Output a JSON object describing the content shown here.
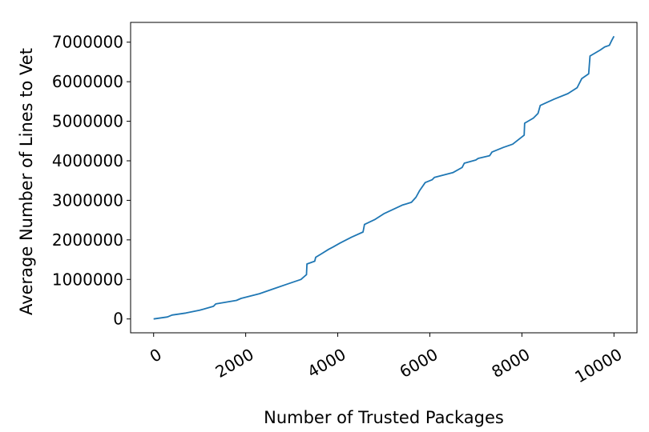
{
  "chart_data": {
    "type": "line",
    "title": "",
    "xlabel": "Number of Trusted Packages",
    "ylabel": "Average Number of Lines to Vet",
    "xlim": [
      -500,
      10500
    ],
    "ylim": [
      -350000,
      7500000
    ],
    "xticks": [
      0,
      2000,
      4000,
      6000,
      8000,
      10000
    ],
    "xtick_labels": [
      "0",
      "2000",
      "4000",
      "6000",
      "8000",
      "10000"
    ],
    "yticks": [
      0,
      1000000,
      2000000,
      3000000,
      4000000,
      5000000,
      6000000,
      7000000
    ],
    "ytick_labels": [
      "0",
      "1000000",
      "2000000",
      "3000000",
      "4000000",
      "5000000",
      "6000000",
      "7000000"
    ],
    "grid": false,
    "legend": "none",
    "series": [
      {
        "color": "#1f77b4",
        "x": [
          0,
          300,
          400,
          700,
          1000,
          1300,
          1350,
          1800,
          1900,
          2300,
          2600,
          2900,
          3200,
          3320,
          3330,
          3500,
          3520,
          3650,
          3800,
          3900,
          4050,
          4300,
          4550,
          4580,
          4800,
          5000,
          5400,
          5600,
          5700,
          5780,
          5900,
          6050,
          6100,
          6500,
          6700,
          6750,
          7000,
          7050,
          7300,
          7350,
          7600,
          7800,
          8050,
          8060,
          8250,
          8350,
          8400,
          8700,
          9000,
          9200,
          9300,
          9450,
          9480,
          9700,
          9800,
          9900,
          9950,
          10000
        ],
        "values": [
          0,
          50000,
          100000,
          150000,
          220000,
          320000,
          380000,
          470000,
          520000,
          640000,
          760000,
          880000,
          1000000,
          1120000,
          1390000,
          1460000,
          1560000,
          1650000,
          1760000,
          1820000,
          1920000,
          2070000,
          2200000,
          2390000,
          2510000,
          2660000,
          2880000,
          2950000,
          3080000,
          3250000,
          3450000,
          3520000,
          3580000,
          3700000,
          3830000,
          3940000,
          4020000,
          4060000,
          4130000,
          4220000,
          4340000,
          4420000,
          4650000,
          4950000,
          5080000,
          5200000,
          5400000,
          5560000,
          5700000,
          5850000,
          6080000,
          6200000,
          6650000,
          6800000,
          6880000,
          6920000,
          7040000,
          7150000
        ]
      }
    ]
  }
}
